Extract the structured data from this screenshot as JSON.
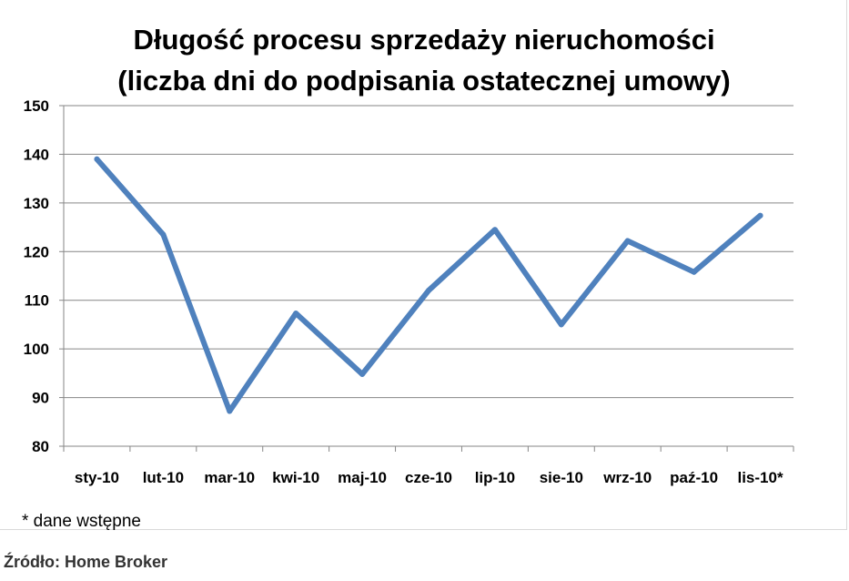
{
  "chart_data": {
    "type": "line",
    "title": [
      "Długość procesu sprzedaży nieruchomości",
      "(liczba dni do podpisania ostatecznej umowy)"
    ],
    "xlabel": "",
    "ylabel": "",
    "categories": [
      "sty-10",
      "lut-10",
      "mar-10",
      "kwi-10",
      "maj-10",
      "cze-10",
      "lip-10",
      "sie-10",
      "wrz-10",
      "paź-10",
      "lis-10*"
    ],
    "series": [
      {
        "values": [
          139,
          123.5,
          87.2,
          107.3,
          94.8,
          112,
          124.5,
          105,
          122.2,
          115.8,
          127.4
        ],
        "color": "#4f81bd"
      }
    ],
    "ylim": [
      80,
      150
    ],
    "yticks": [
      80,
      90,
      100,
      110,
      120,
      130,
      140,
      150
    ],
    "grid": true,
    "legend": "none"
  },
  "footnote": "* dane wstępne",
  "source": "Źródło: Home Broker",
  "colors": {
    "line": "#4f81bd",
    "grid": "#868686",
    "axis": "#868686"
  }
}
